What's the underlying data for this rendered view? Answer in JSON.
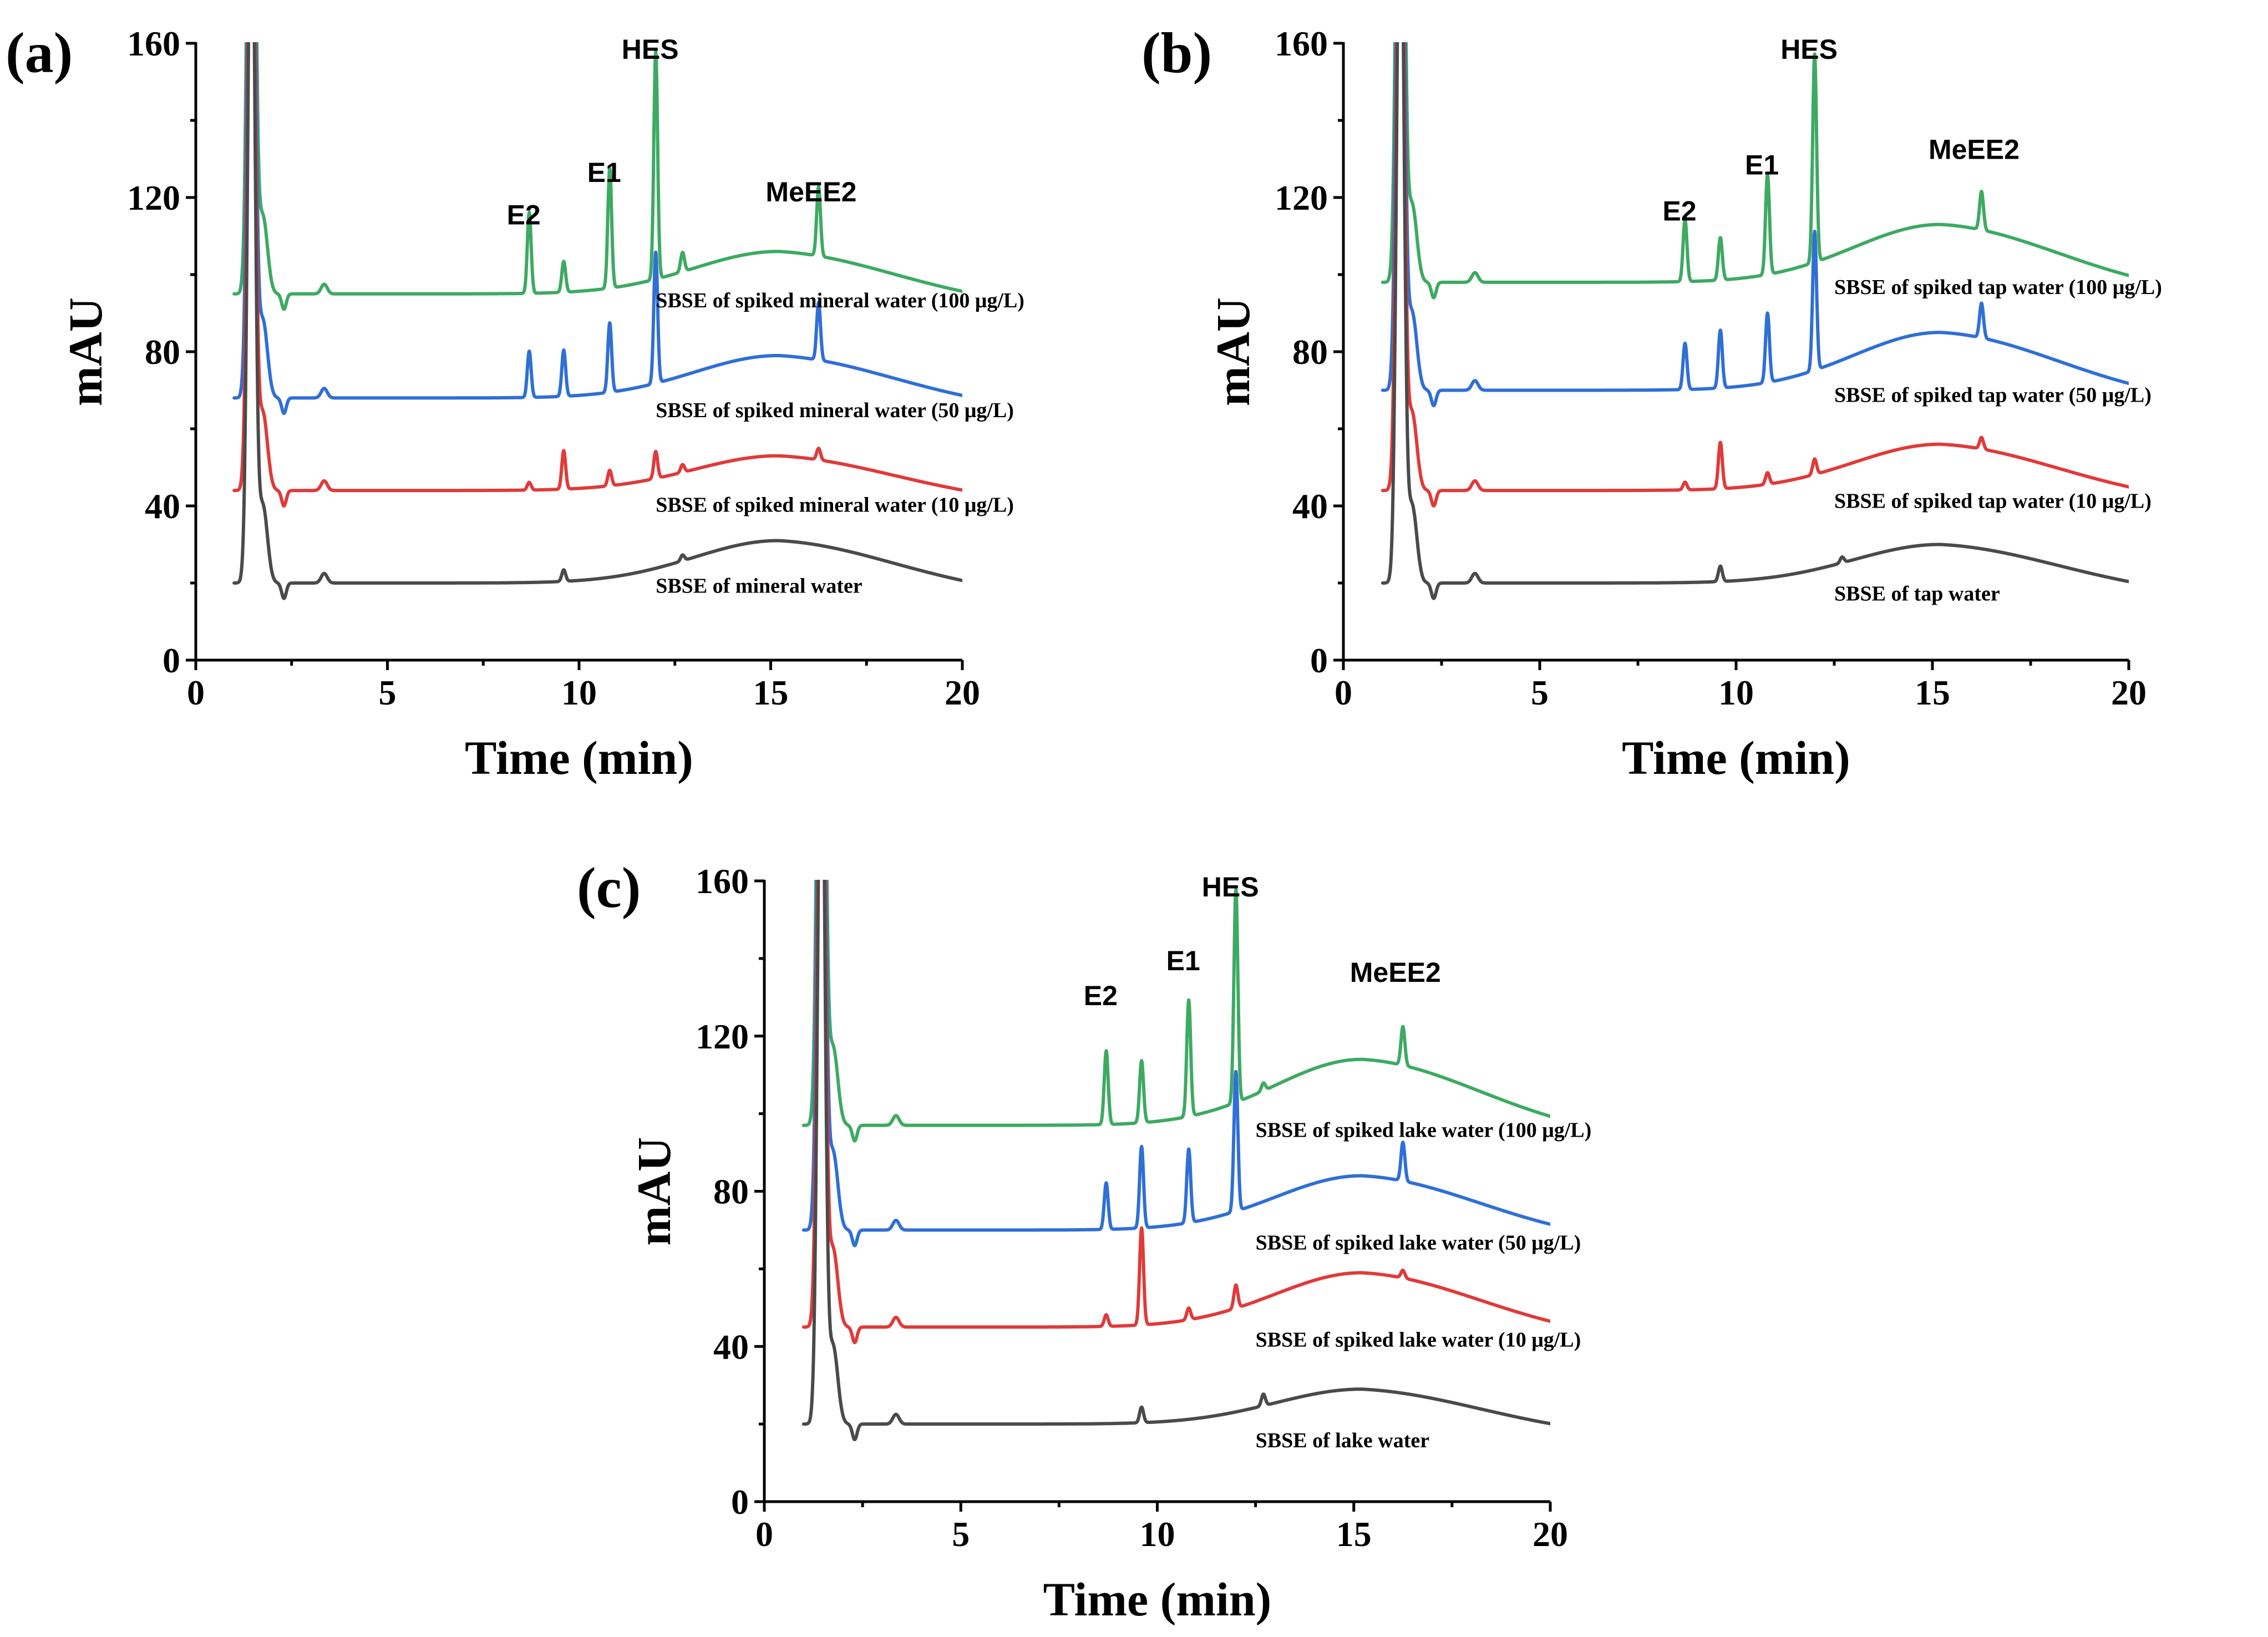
{
  "chart_data": [
    {
      "type": "line",
      "panel_label": "(a)",
      "xlabel": "Time (min)",
      "ylabel": "mAU",
      "xlim": [
        0,
        20
      ],
      "ylim": [
        0,
        160
      ],
      "xticks": [
        "0",
        "5",
        "10",
        "15",
        "20"
      ],
      "yticks": [
        "0",
        "40",
        "80",
        "120",
        "160"
      ],
      "peak_labels": [
        {
          "text": "E2",
          "x": 8.7,
          "y": 113
        },
        {
          "text": "E1",
          "x": 10.8,
          "y": 124
        },
        {
          "text": "HES",
          "x": 12.0,
          "y": 156
        },
        {
          "text": "MeEE2",
          "x": 16.2,
          "y": 119
        }
      ],
      "series": [
        {
          "name": "SBSE of spiked mineral water (100 μg/L)",
          "color": "#3daa62",
          "baseline": 95,
          "hump": 11,
          "peaks": [
            [
              8.7,
              21
            ],
            [
              9.6,
              8
            ],
            [
              10.8,
              31
            ],
            [
              12.0,
              59
            ],
            [
              12.7,
              5
            ],
            [
              16.25,
              18
            ]
          ],
          "label_x": 12.0,
          "label_y": 91.5
        },
        {
          "name": "SBSE of spiked mineral water (50 μg/L)",
          "color": "#2f6fd6",
          "baseline": 68,
          "hump": 11,
          "peaks": [
            [
              8.7,
              12
            ],
            [
              9.6,
              12
            ],
            [
              10.8,
              18
            ],
            [
              12.0,
              34
            ],
            [
              16.25,
              15
            ]
          ],
          "label_x": 12.0,
          "label_y": 63
        },
        {
          "name": "SBSE of spiked mineral water (10 μg/L)",
          "color": "#e03a3a",
          "baseline": 44,
          "hump": 9,
          "peaks": [
            [
              8.7,
              2
            ],
            [
              9.6,
              10
            ],
            [
              10.8,
              4
            ],
            [
              12.0,
              7
            ],
            [
              12.7,
              2
            ],
            [
              16.25,
              3
            ]
          ],
          "label_x": 12.0,
          "label_y": 38.5
        },
        {
          "name": "SBSE of mineral water",
          "color": "#4a4a4a",
          "baseline": 20,
          "hump": 11,
          "peaks": [
            [
              9.6,
              3
            ],
            [
              12.7,
              1.5
            ]
          ],
          "label_x": 12.0,
          "label_y": 17.5
        }
      ]
    },
    {
      "type": "line",
      "panel_label": "(b)",
      "xlabel": "Time (min)",
      "ylabel": "mAU",
      "xlim": [
        0,
        20
      ],
      "ylim": [
        0,
        160
      ],
      "xticks": [
        "0",
        "5",
        "10",
        "15",
        "20"
      ],
      "yticks": [
        "0",
        "40",
        "80",
        "120",
        "160"
      ],
      "peak_labels": [
        {
          "text": "E2",
          "x": 8.7,
          "y": 114
        },
        {
          "text": "E1",
          "x": 10.8,
          "y": 126
        },
        {
          "text": "HES",
          "x": 12.0,
          "y": 156
        },
        {
          "text": "MeEE2",
          "x": 16.2,
          "y": 130
        }
      ],
      "series": [
        {
          "name": "SBSE of spiked tap water (100 μg/L)",
          "color": "#3daa62",
          "baseline": 98,
          "hump": 15,
          "peaks": [
            [
              8.7,
              16
            ],
            [
              9.6,
              11
            ],
            [
              10.8,
              26
            ],
            [
              12.0,
              54
            ],
            [
              16.25,
              10
            ]
          ],
          "label_x": 12.5,
          "label_y": 95
        },
        {
          "name": "SBSE of spiked tap water (50 μg/L)",
          "color": "#2f6fd6",
          "baseline": 70,
          "hump": 15,
          "peaks": [
            [
              8.7,
              12
            ],
            [
              9.6,
              15
            ],
            [
              10.8,
              18
            ],
            [
              12.0,
              36
            ],
            [
              16.25,
              9
            ]
          ],
          "label_x": 12.5,
          "label_y": 67
        },
        {
          "name": "SBSE of spiked tap water (10 μg/L)",
          "color": "#e03a3a",
          "baseline": 44,
          "hump": 12,
          "peaks": [
            [
              8.7,
              2
            ],
            [
              9.6,
              12
            ],
            [
              10.8,
              3
            ],
            [
              12.0,
              4
            ],
            [
              16.25,
              3
            ]
          ],
          "label_x": 12.5,
          "label_y": 39.5
        },
        {
          "name": "SBSE of tap water",
          "color": "#4a4a4a",
          "baseline": 20,
          "hump": 10,
          "peaks": [
            [
              9.6,
              4
            ],
            [
              12.7,
              1.5
            ]
          ],
          "label_x": 12.5,
          "label_y": 15.5
        }
      ]
    },
    {
      "type": "line",
      "panel_label": "(c)",
      "xlabel": "Time (min)",
      "ylabel": "mAU",
      "xlim": [
        0,
        20
      ],
      "ylim": [
        0,
        160
      ],
      "xticks": [
        "0",
        "5",
        "10",
        "15",
        "20"
      ],
      "yticks": [
        "0",
        "40",
        "80",
        "120",
        "160"
      ],
      "peak_labels": [
        {
          "text": "E2",
          "x": 8.7,
          "y": 128
        },
        {
          "text": "E1",
          "x": 10.8,
          "y": 137
        },
        {
          "text": "HES",
          "x": 12.0,
          "y": 156
        },
        {
          "text": "MeEE2",
          "x": 16.2,
          "y": 134
        }
      ],
      "series": [
        {
          "name": "SBSE of spiked lake water (100 μg/L)",
          "color": "#3daa62",
          "baseline": 97,
          "hump": 17,
          "peaks": [
            [
              8.7,
              19
            ],
            [
              9.6,
              16
            ],
            [
              10.8,
              30
            ],
            [
              12.0,
              55
            ],
            [
              12.7,
              2
            ],
            [
              16.25,
              10
            ]
          ],
          "label_x": 12.5,
          "label_y": 94
        },
        {
          "name": "SBSE of spiked lake water (50 μg/L)",
          "color": "#2f6fd6",
          "baseline": 70,
          "hump": 14,
          "peaks": [
            [
              8.7,
              12
            ],
            [
              9.6,
              21
            ],
            [
              10.8,
              19
            ],
            [
              12.0,
              36
            ],
            [
              16.25,
              10
            ]
          ],
          "label_x": 12.5,
          "label_y": 65
        },
        {
          "name": "SBSE of spiked lake water (10 μg/L)",
          "color": "#e03a3a",
          "baseline": 45,
          "hump": 14,
          "peaks": [
            [
              8.7,
              3
            ],
            [
              9.6,
              25
            ],
            [
              10.8,
              3
            ],
            [
              12.0,
              6
            ],
            [
              16.25,
              2
            ]
          ],
          "label_x": 12.5,
          "label_y": 40
        },
        {
          "name": "SBSE of lake water",
          "color": "#4a4a4a",
          "baseline": 20,
          "hump": 9,
          "peaks": [
            [
              9.6,
              4
            ],
            [
              12.7,
              3
            ]
          ],
          "label_x": 12.5,
          "label_y": 14
        }
      ]
    }
  ]
}
